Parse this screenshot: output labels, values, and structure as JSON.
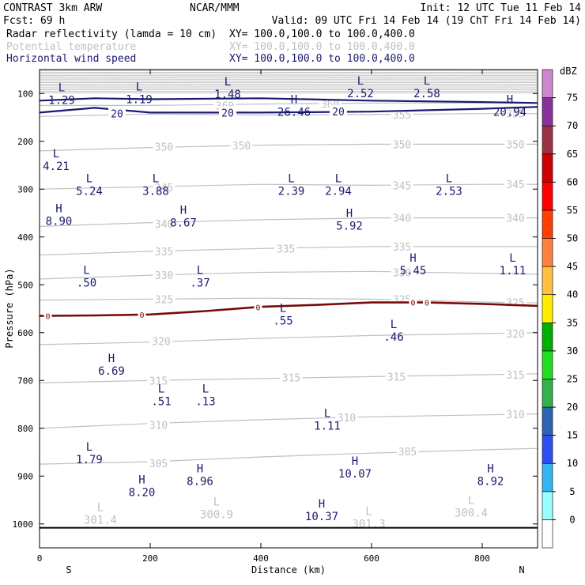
{
  "header": {
    "line1_left": "CONTRAST  3km ARW",
    "line1_center": "NCAR/MMM",
    "line1_right": "Init: 12 UTC Tue 11 Feb 14",
    "line2_left": "Fcst:    69 h",
    "line2_right": "Valid: 09 UTC Fri 14 Feb 14 (19 ChT Fri 14 Feb 14)",
    "fields": [
      {
        "name": "Radar reflectivity (lamda = 10 cm)",
        "xy": "XY= 100.0,100.0 to 100.0,400.0",
        "color": "#000000"
      },
      {
        "name": "Potential temperature",
        "xy": "XY= 100.0,100.0 to 100.0,400.0",
        "color": "#c0c0c0"
      },
      {
        "name": "Horizontal wind speed",
        "xy": "XY= 100.0,100.0 to 100.0,400.0",
        "color": "#1a1a70"
      }
    ]
  },
  "chart_data": {
    "type": "cross-section",
    "xlabel": "Distance (km)",
    "ylabel": "Pressure (hPa)",
    "xlim": [
      0,
      900
    ],
    "ylim": [
      50,
      1050
    ],
    "x_ticks": [
      0,
      200,
      400,
      600,
      800
    ],
    "y_ticks": [
      100,
      200,
      300,
      400,
      500,
      600,
      700,
      800,
      900,
      1000
    ],
    "x_end_labels": {
      "left": "S",
      "right": "N"
    },
    "theta_contours": [
      {
        "level": 305,
        "points": [
          [
            0,
            875
          ],
          [
            200,
            870
          ],
          [
            400,
            860
          ],
          [
            600,
            852
          ],
          [
            800,
            845
          ],
          [
            900,
            842
          ]
        ],
        "labels": [
          [
            215,
            873
          ],
          [
            665,
            848
          ]
        ]
      },
      {
        "level": 310,
        "points": [
          [
            0,
            800
          ],
          [
            200,
            790
          ],
          [
            400,
            782
          ],
          [
            600,
            776
          ],
          [
            800,
            772
          ],
          [
            900,
            770
          ]
        ],
        "labels": [
          [
            215,
            793
          ],
          [
            555,
            777
          ],
          [
            860,
            771
          ]
        ]
      },
      {
        "level": 315,
        "points": [
          [
            0,
            705
          ],
          [
            200,
            700
          ],
          [
            400,
            696
          ],
          [
            600,
            692
          ],
          [
            800,
            688
          ],
          [
            900,
            686
          ]
        ],
        "labels": [
          [
            215,
            700
          ],
          [
            455,
            694
          ],
          [
            645,
            692
          ],
          [
            860,
            688
          ]
        ]
      },
      {
        "level": 320,
        "points": [
          [
            0,
            625
          ],
          [
            200,
            620
          ],
          [
            400,
            612
          ],
          [
            600,
            606
          ],
          [
            800,
            602
          ],
          [
            900,
            600
          ]
        ],
        "labels": [
          [
            220,
            618
          ],
          [
            860,
            602
          ]
        ]
      },
      {
        "level": 325,
        "points": [
          [
            0,
            532
          ],
          [
            200,
            530
          ],
          [
            400,
            528
          ],
          [
            600,
            530
          ],
          [
            800,
            536
          ],
          [
            900,
            538
          ]
        ],
        "labels": [
          [
            225,
            530
          ],
          [
            655,
            530
          ],
          [
            860,
            537
          ]
        ]
      },
      {
        "level": 330,
        "points": [
          [
            0,
            488
          ],
          [
            200,
            480
          ],
          [
            400,
            474
          ],
          [
            600,
            472
          ],
          [
            800,
            476
          ],
          [
            900,
            478
          ]
        ],
        "labels": [
          [
            225,
            480
          ],
          [
            655,
            474
          ]
        ]
      },
      {
        "level": 335,
        "points": [
          [
            0,
            438
          ],
          [
            200,
            430
          ],
          [
            400,
            424
          ],
          [
            600,
            420
          ],
          [
            800,
            420
          ],
          [
            900,
            420
          ]
        ],
        "labels": [
          [
            225,
            430
          ],
          [
            445,
            424
          ],
          [
            655,
            420
          ]
        ]
      },
      {
        "level": 340,
        "points": [
          [
            0,
            378
          ],
          [
            200,
            370
          ],
          [
            400,
            364
          ],
          [
            600,
            360
          ],
          [
            800,
            360
          ],
          [
            900,
            360
          ]
        ],
        "labels": [
          [
            225,
            372
          ],
          [
            655,
            360
          ],
          [
            860,
            360
          ]
        ]
      },
      {
        "level": 345,
        "points": [
          [
            0,
            300
          ],
          [
            200,
            295
          ],
          [
            400,
            290
          ],
          [
            600,
            292
          ],
          [
            800,
            290
          ],
          [
            900,
            290
          ]
        ],
        "labels": [
          [
            225,
            296
          ],
          [
            655,
            292
          ],
          [
            860,
            290
          ]
        ]
      },
      {
        "level": 350,
        "points": [
          [
            0,
            220
          ],
          [
            200,
            213
          ],
          [
            400,
            208
          ],
          [
            600,
            206
          ],
          [
            800,
            206
          ],
          [
            900,
            206
          ]
        ],
        "labels": [
          [
            225,
            211
          ],
          [
            365,
            209
          ],
          [
            655,
            206
          ],
          [
            860,
            206
          ]
        ]
      },
      {
        "level": 355,
        "points": [
          [
            0,
            148
          ],
          [
            200,
            143
          ],
          [
            400,
            145
          ],
          [
            600,
            144
          ],
          [
            800,
            142
          ],
          [
            900,
            142
          ]
        ],
        "labels": [
          [
            655,
            144
          ],
          [
            860,
            142
          ]
        ]
      },
      {
        "level": 360,
        "points": [
          [
            0,
            125
          ],
          [
            200,
            125
          ],
          [
            400,
            122
          ],
          [
            600,
            120
          ],
          [
            800,
            120
          ],
          [
            900,
            120
          ]
        ],
        "labels": [
          [
            335,
            125
          ],
          [
            525,
            122
          ]
        ]
      }
    ],
    "wind_contours": [
      {
        "level": 20,
        "points": [
          [
            0,
            140
          ],
          [
            100,
            130
          ],
          [
            200,
            140
          ],
          [
            400,
            140
          ],
          [
            600,
            138
          ],
          [
            800,
            132
          ],
          [
            900,
            128
          ]
        ],
        "labels": [
          [
            140,
            142
          ],
          [
            340,
            140
          ],
          [
            540,
            138
          ]
        ]
      },
      {
        "level": 20,
        "points": [
          [
            0,
            115
          ],
          [
            100,
            110
          ],
          [
            200,
            112
          ],
          [
            400,
            110
          ],
          [
            600,
            115
          ],
          [
            800,
            118
          ],
          [
            900,
            120
          ]
        ],
        "labels": []
      }
    ],
    "freezing_level": {
      "level": 0,
      "points": [
        [
          0,
          565
        ],
        [
          100,
          564
        ],
        [
          200,
          562
        ],
        [
          300,
          555
        ],
        [
          400,
          546
        ],
        [
          500,
          542
        ],
        [
          600,
          537
        ],
        [
          700,
          537
        ],
        [
          800,
          540
        ],
        [
          900,
          544
        ]
      ],
      "labels": [
        [
          15,
          565
        ],
        [
          185,
          563
        ],
        [
          395,
          546
        ],
        [
          675,
          537
        ],
        [
          700,
          537
        ]
      ]
    },
    "surface_pressure": 1008,
    "wind_extrema": [
      {
        "type": "L",
        "value": "1.29",
        "x": 40,
        "p": 102
      },
      {
        "type": "L",
        "value": "1.19",
        "x": 180,
        "p": 100
      },
      {
        "type": "L",
        "value": "1.48",
        "x": 340,
        "p": 90
      },
      {
        "type": "L",
        "value": "2.52",
        "x": 580,
        "p": 88
      },
      {
        "type": "L",
        "value": "2.58",
        "x": 700,
        "p": 88
      },
      {
        "type": "H",
        "value": "26.46",
        "x": 460,
        "p": 127
      },
      {
        "type": "H",
        "value": "20.94",
        "x": 850,
        "p": 127
      },
      {
        "type": "L",
        "value": "4.21",
        "x": 30,
        "p": 240
      },
      {
        "type": "L",
        "value": "5.24",
        "x": 90,
        "p": 292
      },
      {
        "type": "L",
        "value": "3.88",
        "x": 210,
        "p": 292
      },
      {
        "type": "L",
        "value": "2.39",
        "x": 455,
        "p": 292
      },
      {
        "type": "L",
        "value": "2.94",
        "x": 540,
        "p": 292
      },
      {
        "type": "L",
        "value": "2.53",
        "x": 740,
        "p": 292
      },
      {
        "type": "H",
        "value": "8.90",
        "x": 35,
        "p": 355
      },
      {
        "type": "H",
        "value": "8.67",
        "x": 260,
        "p": 358
      },
      {
        "type": "H",
        "value": "5.92",
        "x": 560,
        "p": 365
      },
      {
        "type": "H",
        "value": "5.45",
        "x": 675,
        "p": 458
      },
      {
        "type": "L",
        "value": "1.11",
        "x": 855,
        "p": 458
      },
      {
        "type": "L",
        "value": ".50",
        "x": 85,
        "p": 484
      },
      {
        "type": "L",
        "value": ".37",
        "x": 290,
        "p": 484
      },
      {
        "type": "L",
        "value": ".55",
        "x": 440,
        "p": 563
      },
      {
        "type": "L",
        "value": ".46",
        "x": 640,
        "p": 597
      },
      {
        "type": "H",
        "value": "6.69",
        "x": 130,
        "p": 668
      },
      {
        "type": "L",
        "value": ".51",
        "x": 220,
        "p": 732
      },
      {
        "type": "L",
        "value": ".13",
        "x": 300,
        "p": 732
      },
      {
        "type": "L",
        "value": "1.11",
        "x": 520,
        "p": 783
      },
      {
        "type": "L",
        "value": "1.79",
        "x": 90,
        "p": 853
      },
      {
        "type": "H",
        "value": "10.07",
        "x": 570,
        "p": 883
      },
      {
        "type": "H",
        "value": "8.96",
        "x": 290,
        "p": 899
      },
      {
        "type": "H",
        "value": "8.20",
        "x": 185,
        "p": 922
      },
      {
        "type": "H",
        "value": "8.92",
        "x": 815,
        "p": 899
      },
      {
        "type": "H",
        "value": "10.37",
        "x": 510,
        "p": 972
      }
    ],
    "theta_extrema": [
      {
        "type": "L",
        "value": "301.4",
        "x": 110,
        "p": 980
      },
      {
        "type": "L",
        "value": "300.9",
        "x": 320,
        "p": 968
      },
      {
        "type": "L",
        "value": "301.3",
        "x": 595,
        "p": 988
      },
      {
        "type": "L",
        "value": "300.4",
        "x": 780,
        "p": 965
      }
    ]
  },
  "colorbar": {
    "unit": "dBZ",
    "levels": [
      0,
      5,
      10,
      15,
      20,
      25,
      30,
      35,
      40,
      45,
      50,
      55,
      60,
      65,
      70,
      75
    ],
    "colors": [
      "#ffffff",
      "#99ffff",
      "#33b5f0",
      "#2f4ef0",
      "#2f64b0",
      "#33b050",
      "#22dd22",
      "#00b000",
      "#ffee00",
      "#ffc040",
      "#ff8040",
      "#ff4000",
      "#ff0000",
      "#cc0000",
      "#993344",
      "#883399",
      "#cc88cc"
    ]
  },
  "colors": {
    "theta": "#c0c0c0",
    "wind": "#1a1a70",
    "freezing": "#7a0a0a",
    "surface": "#000000"
  }
}
